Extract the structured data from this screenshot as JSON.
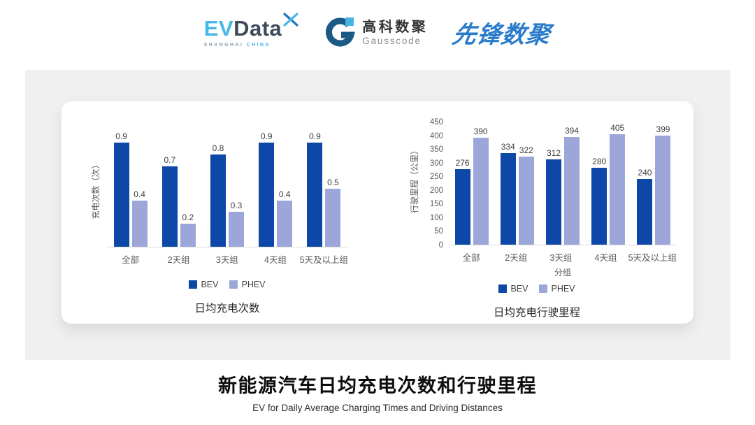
{
  "header": {
    "evdata": {
      "text_ev": "EV",
      "text_data": "Data",
      "tagline_left": "SHANGHAI",
      "tagline_right": "CHINA"
    },
    "gausscode": {
      "name_cn": "高科数聚",
      "name_en": "Gausscode"
    },
    "pioneer": {
      "name_cn": "先锋数聚"
    }
  },
  "footer": {
    "title": "新能源汽车日均充电次数和行驶里程",
    "subtitle": "EV for Daily Average Charging Times and Driving Distances"
  },
  "colors": {
    "bev": "#0D47A8",
    "phev": "#9CA6D8",
    "baseline": "#dcdcdc"
  },
  "chart_data": [
    {
      "type": "bar",
      "title": "日均充电次数",
      "xlabel": "",
      "ylabel": "充电次数（次）",
      "categories": [
        "全部",
        "2天组",
        "3天组",
        "4天组",
        "5天及以上组"
      ],
      "series": [
        {
          "name": "BEV",
          "color": "#0D47A8",
          "values": [
            0.9,
            0.7,
            0.8,
            0.9,
            0.9
          ]
        },
        {
          "name": "PHEV",
          "color": "#9CA6D8",
          "values": [
            0.4,
            0.2,
            0.3,
            0.4,
            0.5
          ]
        }
      ],
      "ylim": [
        0,
        1.0
      ],
      "yticks": [],
      "grid": false,
      "legend_position": "bottom"
    },
    {
      "type": "bar",
      "title": "日均充电行驶里程",
      "xlabel": "分组",
      "ylabel": "行驶里程（公里）",
      "categories": [
        "全部",
        "2天组",
        "3天组",
        "4天组",
        "5天及以上组"
      ],
      "series": [
        {
          "name": "BEV",
          "color": "#0D47A8",
          "values": [
            276,
            334,
            312,
            280,
            240
          ]
        },
        {
          "name": "PHEV",
          "color": "#9CA6D8",
          "values": [
            390,
            322,
            394,
            405,
            399
          ]
        }
      ],
      "ylim": [
        0,
        450
      ],
      "yticks": [
        450,
        400,
        350,
        300,
        250,
        200,
        150,
        100,
        50,
        0
      ],
      "grid": false,
      "legend_position": "bottom"
    }
  ]
}
